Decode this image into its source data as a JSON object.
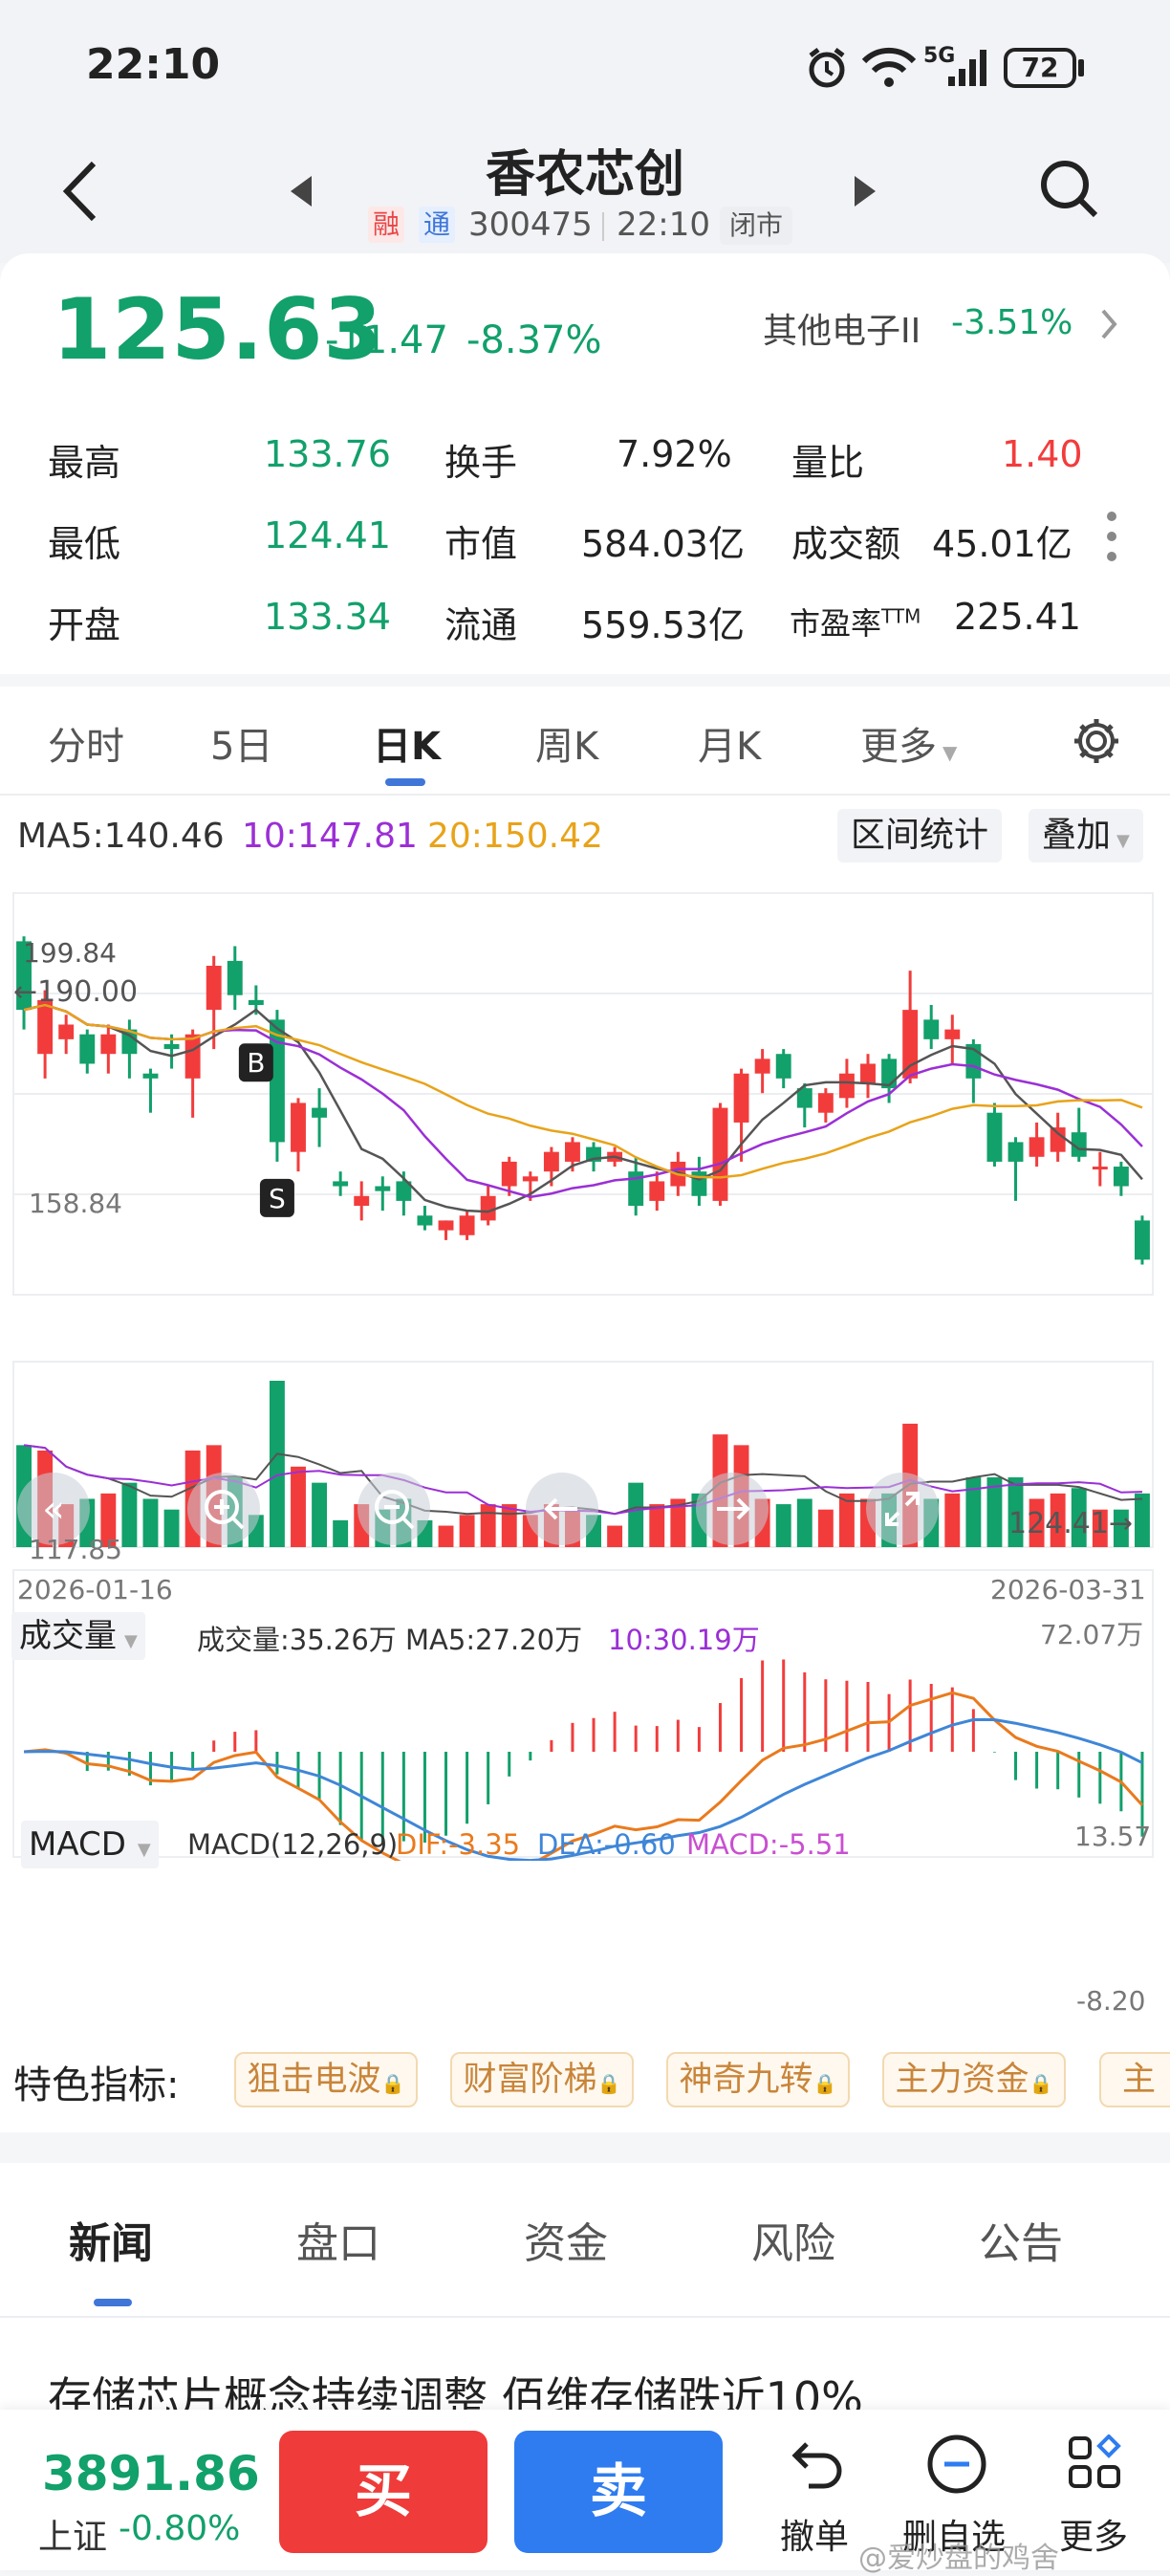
{
  "status_bar": {
    "time": "22:10",
    "signal": "5G",
    "battery": "72"
  },
  "header": {
    "title": "香农芯创",
    "tag_rong": "融",
    "tag_tong": "通",
    "code": "300475",
    "time": "22:10",
    "market_state": "闭市"
  },
  "quote": {
    "price": "125.63",
    "change": "-11.47",
    "change_pct": "-8.37%",
    "sector_name": "其他电子II",
    "sector_pct": "-3.51%",
    "stats": [
      {
        "l1": "最高",
        "v1": "133.76",
        "l2": "换手",
        "v2": "7.92%",
        "l3": "量比",
        "v3": "1.40"
      },
      {
        "l1": "最低",
        "v1": "124.41",
        "l2": "市值",
        "v2": "584.03亿",
        "l3": "成交额",
        "v3": "45.01亿"
      },
      {
        "l1": "开盘",
        "v1": "133.34",
        "l2": "流通",
        "v2": "559.53亿",
        "l3": "市盈率",
        "l3sup": "TTM",
        "v3": "225.41"
      }
    ]
  },
  "period_tabs": [
    "分时",
    "5日",
    "日K",
    "周K",
    "月K",
    "更多"
  ],
  "ma": {
    "ma5": "MA5:140.46",
    "ma10": "10:147.81",
    "ma20": "20:150.42",
    "btn_range": "区间统计",
    "btn_overlay": "叠加"
  },
  "kline": {
    "max_label": "199.84",
    "high_mark": "←190.00",
    "mid_label": "158.84",
    "min_label": "117.85",
    "low_mark": "124.41→",
    "date_start": "2026-01-16",
    "date_end": "2026-03-31",
    "marker_b": "B",
    "marker_s": "S"
  },
  "volume": {
    "selector": "成交量",
    "text": "成交量:35.26万 MA5:27.20万",
    "ma10": "10:30.19万",
    "max": "72.07万"
  },
  "macd": {
    "selector": "MACD",
    "params": "MACD(12,26,9)",
    "dif": "DIF:-3.35",
    "dea": "DEA:-0.60",
    "val": "MACD:-5.51",
    "top": "13.57",
    "bottom": "-8.20"
  },
  "features": {
    "label": "特色指标:",
    "chips": [
      "狙击电波",
      "财富阶梯",
      "神奇九转",
      "主力资金",
      "主"
    ]
  },
  "news_tabs": [
    "新闻",
    "盘口",
    "资金",
    "风险",
    "公告"
  ],
  "news_headline": "存储芯片概念持续调整 佰维存储跌近10%",
  "bottom": {
    "index_value": "3891.86",
    "index_name": "上证",
    "index_pct": "-0.80%",
    "buy": "买",
    "sell": "卖",
    "undo": "撤单",
    "delete_fav": "删自选",
    "more": "更多",
    "watermark": "@爱炒盘的鸡舍"
  },
  "chart_data": {
    "type": "candlestick",
    "x_range": [
      "2026-01-16",
      "2026-03-31"
    ],
    "ylim": [
      117.85,
      199.84
    ],
    "candles": [
      [
        190,
        176,
        191,
        172
      ],
      [
        167,
        178,
        180,
        162
      ],
      [
        170,
        173,
        175,
        167
      ],
      [
        171,
        165,
        172,
        163
      ],
      [
        167,
        171,
        173,
        163
      ],
      [
        172,
        167,
        174,
        162
      ],
      [
        163,
        162,
        164,
        155
      ],
      [
        169,
        168,
        171,
        164
      ],
      [
        162,
        171,
        172,
        154
      ],
      [
        176,
        185,
        187,
        168
      ],
      [
        186,
        179,
        189,
        176
      ],
      [
        178,
        177,
        181,
        175
      ],
      [
        174,
        149,
        176,
        145
      ],
      [
        147,
        157,
        158,
        143
      ],
      [
        156,
        154,
        160,
        148
      ],
      [
        141,
        140,
        143,
        138
      ],
      [
        136,
        138,
        141,
        133
      ],
      [
        140,
        139,
        142,
        135
      ],
      [
        141,
        137,
        143,
        134
      ],
      [
        134,
        132,
        136,
        131
      ],
      [
        131,
        133,
        133,
        129
      ],
      [
        130,
        134,
        135,
        129
      ],
      [
        133,
        138,
        140,
        132
      ],
      [
        140,
        145,
        146,
        138
      ],
      [
        141,
        142,
        143,
        137
      ],
      [
        143,
        147,
        148,
        140
      ],
      [
        145,
        149,
        150,
        143
      ],
      [
        148,
        145,
        149,
        143
      ],
      [
        145,
        147,
        148,
        144
      ],
      [
        143,
        136,
        146,
        134
      ],
      [
        137,
        141,
        143,
        135
      ],
      [
        140,
        145,
        147,
        138
      ],
      [
        143,
        138,
        146,
        136
      ],
      [
        137,
        156,
        157,
        136
      ],
      [
        153,
        163,
        164,
        145
      ],
      [
        163,
        166,
        168,
        159
      ],
      [
        167,
        162,
        168,
        160
      ],
      [
        160,
        156,
        161,
        152
      ],
      [
        155,
        159,
        160,
        153
      ],
      [
        158,
        163,
        166,
        156
      ],
      [
        161,
        165,
        167,
        158
      ],
      [
        166,
        160,
        167,
        157
      ],
      [
        162,
        176,
        184,
        161
      ],
      [
        174,
        170,
        177,
        168
      ],
      [
        170,
        172,
        175,
        165
      ],
      [
        169,
        162,
        170,
        157
      ],
      [
        155,
        145,
        157,
        144
      ],
      [
        149,
        145,
        150,
        137
      ],
      [
        146,
        150,
        153,
        144
      ],
      [
        147,
        152,
        155,
        145
      ],
      [
        151,
        146,
        156,
        145
      ],
      [
        144,
        144,
        147,
        140
      ],
      [
        144,
        140,
        145,
        138
      ],
      [
        133,
        125,
        134,
        124
      ]
    ]
  }
}
